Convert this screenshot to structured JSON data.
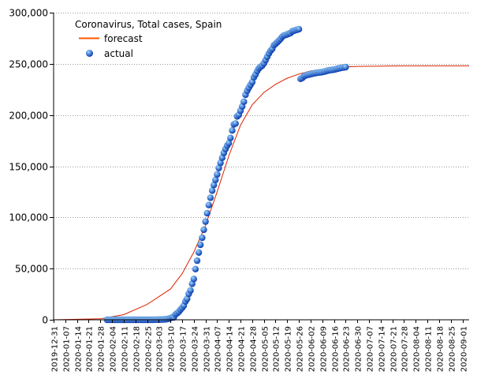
{
  "chart_data": {
    "type": "line",
    "title": "Coronavirus, Total cases, Spain",
    "xlabel": "",
    "ylabel": "",
    "ylim": [
      0,
      300000
    ],
    "yticks": [
      0,
      50000,
      100000,
      150000,
      200000,
      250000,
      300000
    ],
    "ytick_labels": [
      "0",
      "50,000",
      "100,000",
      "150,000",
      "200,000",
      "250,000",
      "300,000"
    ],
    "xlim": [
      "2019-12-31",
      "2020-09-05"
    ],
    "xtick_labels": [
      "2019-12-31",
      "2020-01-07",
      "2020-01-14",
      "2020-01-21",
      "2020-01-28",
      "2020-02-04",
      "2020-02-11",
      "2020-02-18",
      "2020-02-25",
      "2020-03-03",
      "2020-03-10",
      "2020-03-17",
      "2020-03-24",
      "2020-03-31",
      "2020-04-07",
      "2020-04-14",
      "2020-04-21",
      "2020-04-28",
      "2020-05-05",
      "2020-05-12",
      "2020-05-19",
      "2020-05-26",
      "2020-06-02",
      "2020-06-09",
      "2020-06-16",
      "2020-06-23",
      "2020-06-30",
      "2020-07-07",
      "2020-07-14",
      "2020-07-21",
      "2020-07-28",
      "2020-08-04",
      "2020-08-11",
      "2020-08-18",
      "2020-08-25",
      "2020-09-01"
    ],
    "grid": true,
    "legend_position": "top-left",
    "colors": {
      "forecast": "#dd2200",
      "actual_light": "#9fd8ff",
      "actual_dark": "#0033aa"
    },
    "series": [
      {
        "name": "forecast",
        "kind": "line",
        "x": [
          "2019-12-31",
          "2020-01-28",
          "2020-02-11",
          "2020-02-25",
          "2020-03-10",
          "2020-03-17",
          "2020-03-24",
          "2020-03-31",
          "2020-04-07",
          "2020-04-14",
          "2020-04-21",
          "2020-04-28",
          "2020-05-05",
          "2020-05-12",
          "2020-05-19",
          "2020-05-26",
          "2020-06-02",
          "2020-06-09",
          "2020-06-16",
          "2020-06-23",
          "2020-06-30",
          "2020-07-14",
          "2020-07-28",
          "2020-08-25",
          "2020-09-05"
        ],
        "y": [
          0,
          1000,
          5000,
          15000,
          30000,
          45000,
          66000,
          92000,
          125000,
          160000,
          190000,
          210000,
          222000,
          230000,
          236000,
          240000,
          243000,
          244500,
          246000,
          247000,
          247500,
          247800,
          248000,
          248000,
          248000
        ]
      },
      {
        "name": "actual",
        "kind": "scatter",
        "x": [
          "2020-02-01",
          "2020-02-02",
          "2020-02-03",
          "2020-02-04",
          "2020-02-05",
          "2020-02-06",
          "2020-02-07",
          "2020-02-08",
          "2020-02-09",
          "2020-02-10",
          "2020-02-11",
          "2020-02-12",
          "2020-02-13",
          "2020-02-14",
          "2020-02-15",
          "2020-02-16",
          "2020-02-17",
          "2020-02-18",
          "2020-02-19",
          "2020-02-20",
          "2020-02-21",
          "2020-02-22",
          "2020-02-23",
          "2020-02-24",
          "2020-02-25",
          "2020-02-26",
          "2020-02-27",
          "2020-02-28",
          "2020-02-29",
          "2020-03-01",
          "2020-03-02",
          "2020-03-03",
          "2020-03-04",
          "2020-03-05",
          "2020-03-06",
          "2020-03-07",
          "2020-03-08",
          "2020-03-09",
          "2020-03-10",
          "2020-03-11",
          "2020-03-12",
          "2020-03-13",
          "2020-03-14",
          "2020-03-15",
          "2020-03-16",
          "2020-03-17",
          "2020-03-18",
          "2020-03-19",
          "2020-03-20",
          "2020-03-21",
          "2020-03-22",
          "2020-03-23",
          "2020-03-24",
          "2020-03-25",
          "2020-03-26",
          "2020-03-27",
          "2020-03-28",
          "2020-03-29",
          "2020-03-30",
          "2020-03-31",
          "2020-04-01",
          "2020-04-02",
          "2020-04-03",
          "2020-04-04",
          "2020-04-05",
          "2020-04-06",
          "2020-04-07",
          "2020-04-08",
          "2020-04-09",
          "2020-04-10",
          "2020-04-11",
          "2020-04-12",
          "2020-04-13",
          "2020-04-14",
          "2020-04-15",
          "2020-04-16",
          "2020-04-17",
          "2020-04-18",
          "2020-04-19",
          "2020-04-20",
          "2020-04-21",
          "2020-04-22",
          "2020-04-23",
          "2020-04-24",
          "2020-04-25",
          "2020-04-26",
          "2020-04-27",
          "2020-04-28",
          "2020-04-29",
          "2020-04-30",
          "2020-05-01",
          "2020-05-02",
          "2020-05-03",
          "2020-05-04",
          "2020-05-05",
          "2020-05-06",
          "2020-05-07",
          "2020-05-08",
          "2020-05-09",
          "2020-05-10",
          "2020-05-11",
          "2020-05-12",
          "2020-05-13",
          "2020-05-14",
          "2020-05-15",
          "2020-05-16",
          "2020-05-17",
          "2020-05-18",
          "2020-05-19",
          "2020-05-20",
          "2020-05-21",
          "2020-05-22",
          "2020-05-23",
          "2020-05-24",
          "2020-05-25",
          "2020-05-26",
          "2020-05-27",
          "2020-05-28",
          "2020-05-29",
          "2020-05-30",
          "2020-05-31",
          "2020-06-01",
          "2020-06-02",
          "2020-06-03",
          "2020-06-04",
          "2020-06-05",
          "2020-06-06",
          "2020-06-07",
          "2020-06-08",
          "2020-06-09",
          "2020-06-10",
          "2020-06-11",
          "2020-06-12",
          "2020-06-13",
          "2020-06-14",
          "2020-06-15",
          "2020-06-16",
          "2020-06-17",
          "2020-06-18",
          "2020-06-19",
          "2020-06-20",
          "2020-06-21",
          "2020-06-22",
          "2020-06-23"
        ],
        "y": [
          1,
          1,
          1,
          1,
          1,
          1,
          1,
          1,
          2,
          2,
          2,
          2,
          2,
          2,
          2,
          2,
          2,
          2,
          2,
          2,
          2,
          2,
          2,
          2,
          6,
          13,
          15,
          32,
          45,
          84,
          120,
          165,
          222,
          259,
          400,
          500,
          673,
          1073,
          1695,
          2277,
          2277,
          5232,
          6391,
          7798,
          9942,
          11748,
          13910,
          17963,
          20410,
          25374,
          28603,
          35136,
          39885,
          49515,
          57786,
          65719,
          73235,
          80110,
          87956,
          95923,
          104118,
          112065,
          119199,
          126168,
          131646,
          136675,
          141942,
          148220,
          153222,
          158273,
          163027,
          166831,
          170099,
          172541,
          177644,
          184948,
          190839,
          191726,
          198674,
          200210,
          204178,
          208389,
          213024,
          219764,
          223759,
          226629,
          229422,
          232128,
          236899,
          239639,
          242988,
          245567,
          247122,
          248301,
          250561,
          253682,
          256855,
          260117,
          262783,
          264663,
          268143,
          269520,
          271095,
          272646,
          274367,
          276505,
          277719,
          278188,
          278803,
          279524,
          280117,
          281904,
          282370,
          282852,
          283339,
          283849,
          235400,
          236259,
          237906,
          238564,
          239228,
          239479,
          239932,
          240326,
          240660,
          240978,
          241310,
          241550,
          241717,
          241966,
          242280,
          242707,
          243209,
          243605,
          243928,
          244109,
          244328,
          244683,
          245268,
          245575,
          245938,
          246272,
          246504,
          246752
        ]
      }
    ]
  }
}
